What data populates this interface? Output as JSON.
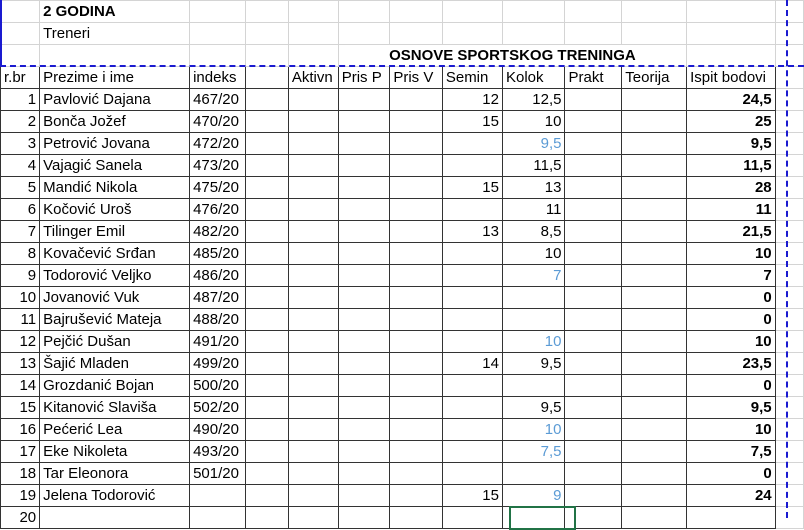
{
  "sheet": {
    "year_label": "2 GODINA",
    "group_label": "Treneri",
    "course_title": "OSNOVE SPORTSKOG TRENINGA",
    "headers": [
      "r.br",
      "Prezime i ime",
      "indeks",
      "",
      "Aktivn",
      "Pris P",
      "Pris V",
      "Semin",
      "Kolok",
      "Prakt",
      "Teorija",
      "Ispit bodovi"
    ],
    "next_row_label": "20",
    "highlight_color": "#5b9bd5",
    "rows": [
      {
        "rbr": "1",
        "name": "Pavlović Dajana",
        "index": "467/20",
        "semin": "12",
        "kolok": "12,5",
        "kolok_blue": false,
        "ispit": "24,5"
      },
      {
        "rbr": "2",
        "name": "Bonča Jožef",
        "index": "470/20",
        "semin": "15",
        "kolok": "10",
        "kolok_blue": false,
        "ispit": "25"
      },
      {
        "rbr": "3",
        "name": "Petrović Jovana",
        "index": "472/20",
        "semin": "",
        "kolok": "9,5",
        "kolok_blue": true,
        "ispit": "9,5"
      },
      {
        "rbr": "4",
        "name": "Vajagić Sanela",
        "index": "473/20",
        "semin": "",
        "kolok": "11,5",
        "kolok_blue": false,
        "ispit": "11,5"
      },
      {
        "rbr": "5",
        "name": "Mandić Nikola",
        "index": "475/20",
        "semin": "15",
        "kolok": "13",
        "kolok_blue": false,
        "ispit": "28"
      },
      {
        "rbr": "6",
        "name": "Kočović Uroš",
        "index": "476/20",
        "semin": "",
        "kolok": "11",
        "kolok_blue": false,
        "ispit": "11"
      },
      {
        "rbr": "7",
        "name": "Tilinger Emil",
        "index": "482/20",
        "semin": "13",
        "kolok": "8,5",
        "kolok_blue": false,
        "ispit": "21,5"
      },
      {
        "rbr": "8",
        "name": "Kovačević Srđan",
        "index": "485/20",
        "semin": "",
        "kolok": "10",
        "kolok_blue": false,
        "ispit": "10"
      },
      {
        "rbr": "9",
        "name": "Todorović Veljko",
        "index": "486/20",
        "semin": "",
        "kolok": "7",
        "kolok_blue": true,
        "ispit": "7"
      },
      {
        "rbr": "10",
        "name": "Jovanović Vuk",
        "index": "487/20",
        "semin": "",
        "kolok": "",
        "kolok_blue": false,
        "ispit": "0"
      },
      {
        "rbr": "11",
        "name": "Bajrušević Mateja",
        "index": "488/20",
        "semin": "",
        "kolok": "",
        "kolok_blue": false,
        "ispit": "0"
      },
      {
        "rbr": "12",
        "name": "Pejčić Dušan",
        "index": "491/20",
        "semin": "",
        "kolok": "10",
        "kolok_blue": true,
        "ispit": "10"
      },
      {
        "rbr": "13",
        "name": "Šajić Mladen",
        "index": "499/20",
        "semin": "14",
        "kolok": "9,5",
        "kolok_blue": false,
        "ispit": "23,5"
      },
      {
        "rbr": "14",
        "name": "Grozdanić Bojan",
        "index": "500/20",
        "semin": "",
        "kolok": "",
        "kolok_blue": false,
        "ispit": "0"
      },
      {
        "rbr": "15",
        "name": "Kitanović Slaviša",
        "index": "502/20",
        "semin": "",
        "kolok": "9,5",
        "kolok_blue": false,
        "ispit": "9,5"
      },
      {
        "rbr": "16",
        "name": "Pećerić Lea",
        "index": "490/20",
        "semin": "",
        "kolok": "10",
        "kolok_blue": true,
        "ispit": "10"
      },
      {
        "rbr": "17",
        "name": "Eke Nikoleta",
        "index": "493/20",
        "semin": "",
        "kolok": "7,5",
        "kolok_blue": true,
        "ispit": "7,5"
      },
      {
        "rbr": "18",
        "name": "Tar Eleonora",
        "index": "501/20",
        "semin": "",
        "kolok": "",
        "kolok_blue": false,
        "ispit": "0"
      },
      {
        "rbr": "19",
        "name": "Jelena Todorović",
        "index": "",
        "semin": "15",
        "kolok": "9",
        "kolok_blue": true,
        "ispit": "24"
      }
    ]
  }
}
